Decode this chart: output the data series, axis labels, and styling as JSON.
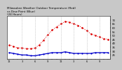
{
  "title": "Milwaukee Weather Outdoor Temperature (Red)\nvs Dew Point (Blue)\n(24 Hours)",
  "title_fontsize": 3.0,
  "background_color": "#c8c8c8",
  "plot_bg_color": "#ffffff",
  "hours": [
    0,
    1,
    2,
    3,
    4,
    5,
    6,
    7,
    8,
    9,
    10,
    11,
    12,
    13,
    14,
    15,
    16,
    17,
    18,
    19,
    20,
    21,
    22,
    23
  ],
  "temperature": [
    38,
    36,
    34,
    34,
    33,
    33,
    34,
    38,
    44,
    51,
    57,
    61,
    65,
    68,
    67,
    65,
    63,
    60,
    56,
    52,
    50,
    48,
    46,
    45
  ],
  "dew_point": [
    28,
    27,
    26,
    25,
    25,
    24,
    24,
    25,
    26,
    27,
    28,
    28,
    28,
    29,
    28,
    27,
    27,
    27,
    27,
    27,
    28,
    28,
    28,
    28
  ],
  "temp_color": "#dd0000",
  "dew_color": "#0000cc",
  "ylim_min": 20,
  "ylim_max": 75,
  "yticks": [
    25,
    30,
    35,
    40,
    45,
    50,
    55,
    60,
    65,
    70
  ],
  "ylabel_fontsize": 2.8,
  "xlabel_fontsize": 2.5,
  "grid_color": "#aaaaaa",
  "grid_x_positions": [
    3,
    6,
    9,
    12,
    15,
    18,
    21
  ]
}
